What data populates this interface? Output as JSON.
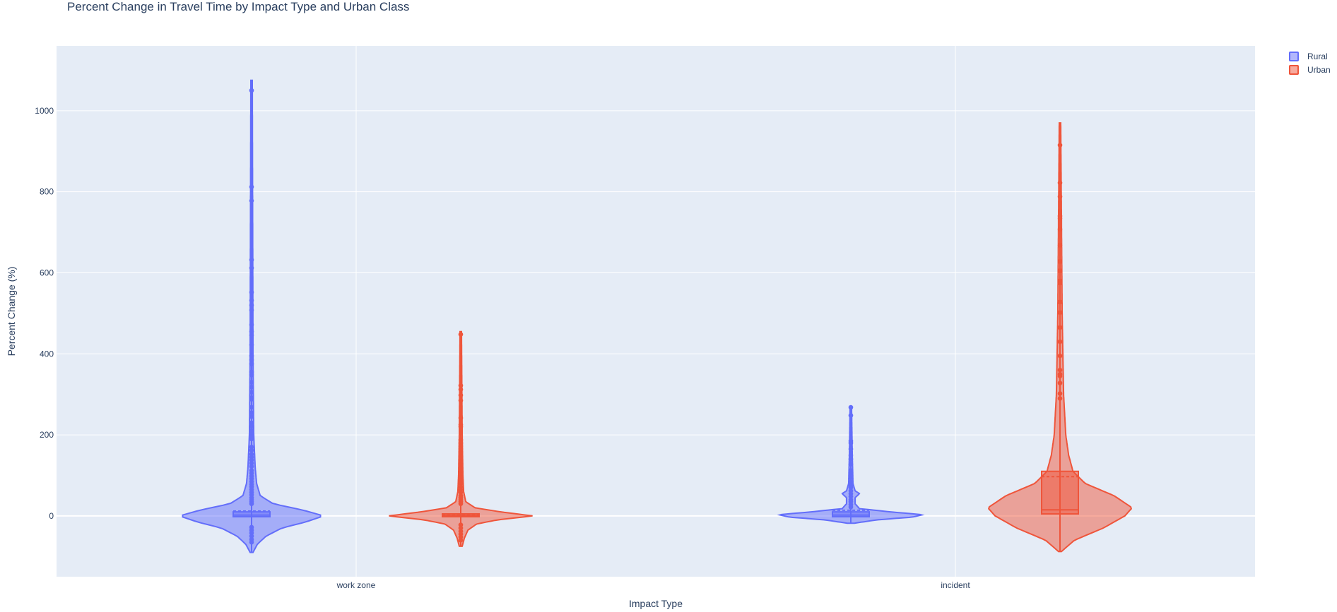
{
  "chart_data": {
    "type": "violin",
    "title": "Percent Change in Travel Time by Impact Type and Urban Class",
    "xlabel": "Impact Type",
    "ylabel": "Percent Change (%)",
    "categories": [
      "work zone",
      "incident"
    ],
    "ylim": [
      -150,
      1160
    ],
    "yticks": [
      0,
      200,
      400,
      600,
      800,
      1000
    ],
    "grid": true,
    "legend_position": "top-right",
    "colors": {
      "Rural": "#636efa",
      "Urban": "#ef553b",
      "plot_bg": "#e5ecf6"
    },
    "series": [
      {
        "name": "Rural",
        "groups": [
          {
            "category": "work zone",
            "range": [
              -90,
              1075
            ],
            "box": {
              "q1": -2,
              "median": 2,
              "q3": 10,
              "mean": 12
            },
            "density": [
              [
                -90,
                0.02
              ],
              [
                -70,
                0.08
              ],
              [
                -50,
                0.2
              ],
              [
                -30,
                0.42
              ],
              [
                -15,
                0.75
              ],
              [
                0,
                1.0
              ],
              [
                15,
                0.7
              ],
              [
                30,
                0.3
              ],
              [
                50,
                0.12
              ],
              [
                80,
                0.07
              ],
              [
                120,
                0.05
              ],
              [
                200,
                0.03
              ],
              [
                400,
                0.02
              ],
              [
                1075,
                0.01
              ]
            ],
            "outliers": [
              1050,
              812,
              778,
              632,
              612,
              552,
              532,
              520,
              508,
              472,
              455,
              446,
              422,
              395,
              385,
              375,
              355,
              348,
              330,
              318,
              305,
              292,
              288,
              268,
              255,
              245,
              230,
              222,
              212,
              205,
              198,
              190,
              170,
              162,
              152,
              145,
              138,
              130,
              122,
              112,
              105,
              98,
              92,
              85,
              78,
              72,
              65,
              58,
              52,
              45,
              40,
              35,
              30,
              -28,
              -35,
              -42,
              -50,
              -58,
              -65
            ]
          },
          {
            "category": "incident",
            "range": [
              -18,
              270
            ],
            "box": {
              "q1": -2,
              "median": 2,
              "q3": 10,
              "mean": 14
            },
            "density": [
              [
                -18,
                0.05
              ],
              [
                -10,
                0.35
              ],
              [
                -3,
                0.85
              ],
              [
                3,
                1.0
              ],
              [
                10,
                0.55
              ],
              [
                18,
                0.12
              ],
              [
                30,
                0.06
              ],
              [
                45,
                0.06
              ],
              [
                55,
                0.12
              ],
              [
                62,
                0.06
              ],
              [
                80,
                0.03
              ],
              [
                150,
                0.02
              ],
              [
                270,
                0.01
              ]
            ],
            "outliers": [
              268,
              248,
              185,
              180,
              165,
              150,
              140,
              128,
              112,
              105,
              95,
              85,
              80,
              75,
              70,
              62,
              55,
              48,
              40,
              35,
              28,
              22
            ]
          }
        ]
      },
      {
        "name": "Urban",
        "groups": [
          {
            "category": "work zone",
            "range": [
              -75,
              455
            ],
            "box": {
              "q1": -2,
              "median": 1,
              "q3": 5,
              "mean": 3
            },
            "density": [
              [
                -75,
                0.02
              ],
              [
                -55,
                0.05
              ],
              [
                -35,
                0.1
              ],
              [
                -20,
                0.22
              ],
              [
                -10,
                0.5
              ],
              [
                0,
                1.0
              ],
              [
                10,
                0.55
              ],
              [
                20,
                0.2
              ],
              [
                35,
                0.07
              ],
              [
                60,
                0.04
              ],
              [
                100,
                0.03
              ],
              [
                200,
                0.02
              ],
              [
                455,
                0.01
              ]
            ],
            "outliers": [
              448,
              322,
              312,
              298,
              285,
              242,
              225,
              220,
              188,
              180,
              172,
              165,
              155,
              148,
              140,
              132,
              125,
              118,
              110,
              102,
              95,
              88,
              80,
              72,
              65,
              58,
              50,
              45,
              40,
              35,
              30,
              -22,
              -30,
              -38,
              -45,
              -52,
              -60
            ]
          },
          {
            "category": "incident",
            "range": [
              -88,
              970
            ],
            "box": {
              "q1": 5,
              "median": 15,
              "q3": 110,
              "mean": 97
            },
            "density": [
              [
                -88,
                0.02
              ],
              [
                -60,
                0.2
              ],
              [
                -30,
                0.6
              ],
              [
                0,
                0.9
              ],
              [
                20,
                1.0
              ],
              [
                50,
                0.75
              ],
              [
                80,
                0.35
              ],
              [
                110,
                0.18
              ],
              [
                150,
                0.12
              ],
              [
                200,
                0.08
              ],
              [
                300,
                0.05
              ],
              [
                500,
                0.03
              ],
              [
                970,
                0.01
              ]
            ],
            "outliers": [
              915,
              822,
              788,
              740,
              735,
              708,
              668,
              628,
              605,
              580,
              575,
              528,
              502,
              465,
              430,
              395,
              360,
              350,
              345,
              328,
              302,
              290
            ]
          }
        ]
      }
    ]
  }
}
